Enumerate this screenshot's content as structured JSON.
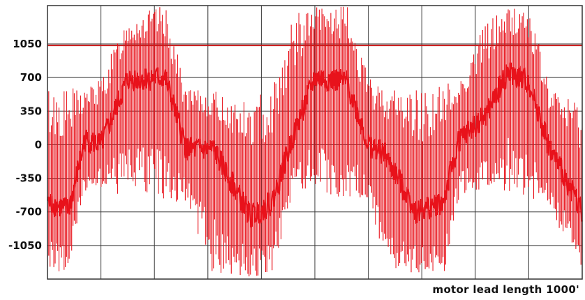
{
  "chart_data": {
    "type": "line",
    "caption": "motor lead length 1000'",
    "ylim": [
      -1400,
      1450
    ],
    "xlim": [
      0,
      1
    ],
    "y_ticks": [
      1050,
      700,
      350,
      0,
      -350,
      -700,
      -1050
    ],
    "grid": true,
    "reference_line": {
      "y": 1035
    },
    "series": [
      {
        "envelope": [
          {
            "x": 0.0,
            "lo": -1300,
            "hi": 620,
            "center": -600
          },
          {
            "x": 0.04,
            "lo": -1350,
            "hi": 600,
            "center": -680
          },
          {
            "x": 0.07,
            "lo": -500,
            "hi": 600,
            "center": 50
          },
          {
            "x": 0.1,
            "lo": -450,
            "hi": 700,
            "center": 0
          },
          {
            "x": 0.15,
            "lo": -580,
            "hi": 1350,
            "center": 680
          },
          {
            "x": 0.22,
            "lo": -620,
            "hi": 1450,
            "center": 700
          },
          {
            "x": 0.26,
            "lo": -620,
            "hi": 580,
            "center": -50
          },
          {
            "x": 0.31,
            "lo": -1350,
            "hi": 560,
            "center": -50
          },
          {
            "x": 0.38,
            "lo": -1380,
            "hi": 450,
            "center": -750
          },
          {
            "x": 0.42,
            "lo": -1350,
            "hi": 650,
            "center": -600
          },
          {
            "x": 0.46,
            "lo": -500,
            "hi": 1350,
            "center": 100
          },
          {
            "x": 0.5,
            "lo": -500,
            "hi": 1450,
            "center": 700
          },
          {
            "x": 0.56,
            "lo": -560,
            "hi": 1450,
            "center": 650
          },
          {
            "x": 0.6,
            "lo": -600,
            "hi": 700,
            "center": 0
          },
          {
            "x": 0.63,
            "lo": -1300,
            "hi": 600,
            "center": -100
          },
          {
            "x": 0.69,
            "lo": -1350,
            "hi": 600,
            "center": -700
          },
          {
            "x": 0.74,
            "lo": -1380,
            "hi": 650,
            "center": -600
          },
          {
            "x": 0.77,
            "lo": -550,
            "hi": 700,
            "center": 50
          },
          {
            "x": 0.82,
            "lo": -450,
            "hi": 1300,
            "center": 300
          },
          {
            "x": 0.86,
            "lo": -480,
            "hi": 1450,
            "center": 750
          },
          {
            "x": 0.9,
            "lo": -600,
            "hi": 1450,
            "center": 650
          },
          {
            "x": 0.94,
            "lo": -700,
            "hi": 600,
            "center": -50
          },
          {
            "x": 1.0,
            "lo": -1300,
            "hi": 450,
            "center": -680
          }
        ]
      }
    ],
    "colors": {
      "trace": "#e8121b",
      "reference": "#cc1a1a",
      "grid": "#333333"
    }
  }
}
